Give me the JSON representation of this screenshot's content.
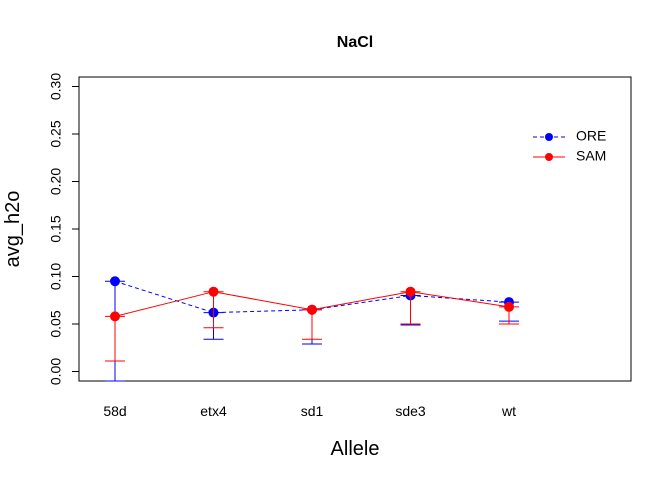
{
  "chart_data": {
    "type": "line",
    "title": "NaCl",
    "xlabel": "Allele",
    "ylabel": "avg_h2o",
    "categories": [
      "58d",
      "etx4",
      "sd1",
      "sde3",
      "wt"
    ],
    "ylim": [
      -0.01,
      0.31
    ],
    "yticks": [
      "0.00",
      "0.05",
      "0.10",
      "0.15",
      "0.20",
      "0.25",
      "0.30"
    ],
    "ytick_values": [
      0.0,
      0.05,
      0.1,
      0.15,
      0.2,
      0.25,
      0.3
    ],
    "grid": false,
    "legend_position": "top-right",
    "series": [
      {
        "name": "ORE",
        "color": "#0000ff",
        "line_style": "dashed",
        "values": [
          0.095,
          0.062,
          0.065,
          0.08,
          0.073
        ],
        "lower": [
          -0.01,
          0.034,
          0.029,
          0.049,
          0.053
        ],
        "upper": [
          0.095,
          0.062,
          0.065,
          0.08,
          0.073
        ]
      },
      {
        "name": "SAM",
        "color": "#ff0000",
        "line_style": "solid",
        "values": [
          0.058,
          0.084,
          0.065,
          0.084,
          0.068
        ],
        "lower": [
          0.011,
          0.046,
          0.034,
          0.05,
          0.05
        ],
        "upper": [
          0.058,
          0.084,
          0.065,
          0.084,
          0.068
        ]
      }
    ]
  }
}
